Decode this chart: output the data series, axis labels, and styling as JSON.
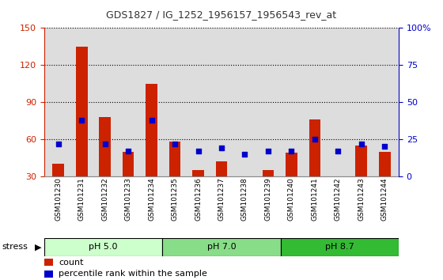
{
  "title": "GDS1827 / IG_1252_1956157_1956543_rev_at",
  "samples": [
    "GSM101230",
    "GSM101231",
    "GSM101232",
    "GSM101233",
    "GSM101234",
    "GSM101235",
    "GSM101236",
    "GSM101237",
    "GSM101238",
    "GSM101239",
    "GSM101240",
    "GSM101241",
    "GSM101242",
    "GSM101243",
    "GSM101244"
  ],
  "counts": [
    40,
    135,
    78,
    50,
    105,
    58,
    35,
    42,
    28,
    35,
    49,
    76,
    30,
    55,
    50
  ],
  "percentiles": [
    22,
    38,
    22,
    17,
    38,
    22,
    17,
    19,
    15,
    17,
    17,
    25,
    17,
    22,
    20
  ],
  "left_ylim": [
    30,
    150
  ],
  "left_yticks": [
    30,
    60,
    90,
    120,
    150
  ],
  "right_ylim": [
    0,
    100
  ],
  "right_yticks": [
    0,
    25,
    50,
    75,
    100
  ],
  "right_yticklabels": [
    "0",
    "25",
    "50",
    "75",
    "100%"
  ],
  "bar_color": "#cc2200",
  "square_color": "#0000cc",
  "bg_color": "#dddddd",
  "grid_color": "#000000",
  "groups": [
    {
      "label": "pH 5.0",
      "start": 0,
      "end": 5,
      "color": "#ccffcc"
    },
    {
      "label": "pH 7.0",
      "start": 5,
      "end": 10,
      "color": "#88dd88"
    },
    {
      "label": "pH 8.7",
      "start": 10,
      "end": 15,
      "color": "#33bb33"
    }
  ],
  "stress_label": "stress",
  "legend_count": "count",
  "legend_pct": "percentile rank within the sample",
  "bar_width": 0.5
}
